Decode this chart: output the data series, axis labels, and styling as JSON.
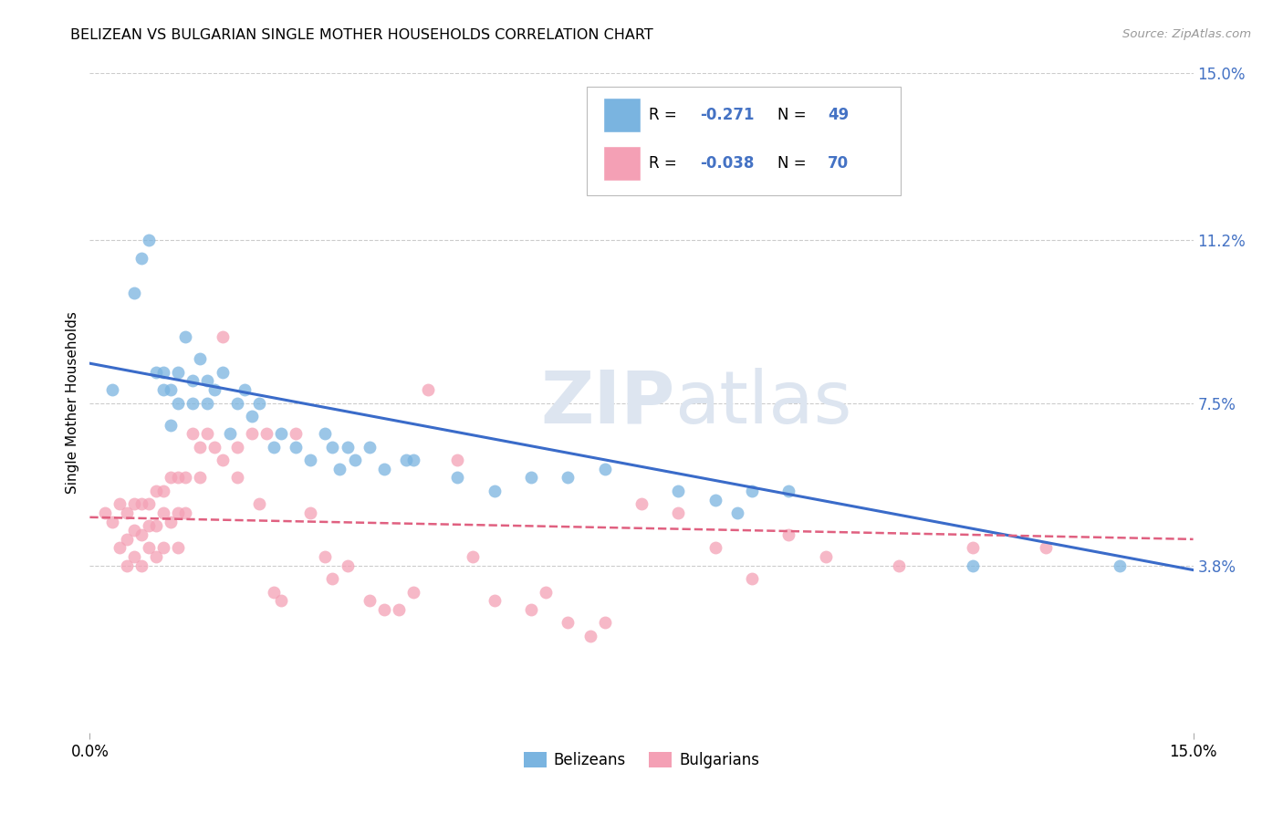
{
  "title": "BELIZEAN VS BULGARIAN SINGLE MOTHER HOUSEHOLDS CORRELATION CHART",
  "source": "Source: ZipAtlas.com",
  "ylabel": "Single Mother Households",
  "x_min": 0.0,
  "x_max": 0.15,
  "y_min": 0.0,
  "y_max": 0.15,
  "x_tick_labels": [
    "0.0%",
    "15.0%"
  ],
  "x_tick_vals": [
    0.0,
    0.15
  ],
  "y_tick_labels_right": [
    "3.8%",
    "7.5%",
    "11.2%",
    "15.0%"
  ],
  "y_tick_values_right": [
    0.038,
    0.075,
    0.112,
    0.15
  ],
  "belizean_color": "#7ab4e0",
  "bulgarian_color": "#f4a0b5",
  "trendline_blue": "#3a6bc9",
  "trendline_pink": "#e06080",
  "right_label_color": "#4472c4",
  "watermark_color": "#dde5f0",
  "belizean_x": [
    0.003,
    0.006,
    0.007,
    0.008,
    0.009,
    0.01,
    0.01,
    0.011,
    0.011,
    0.012,
    0.012,
    0.013,
    0.014,
    0.014,
    0.015,
    0.016,
    0.016,
    0.017,
    0.018,
    0.019,
    0.02,
    0.021,
    0.022,
    0.023,
    0.025,
    0.026,
    0.028,
    0.03,
    0.032,
    0.033,
    0.034,
    0.035,
    0.036,
    0.038,
    0.04,
    0.043,
    0.044,
    0.05,
    0.055,
    0.06,
    0.065,
    0.07,
    0.08,
    0.085,
    0.088,
    0.09,
    0.095,
    0.12,
    0.14
  ],
  "belizean_y": [
    0.078,
    0.1,
    0.108,
    0.112,
    0.082,
    0.078,
    0.082,
    0.078,
    0.07,
    0.082,
    0.075,
    0.09,
    0.075,
    0.08,
    0.085,
    0.08,
    0.075,
    0.078,
    0.082,
    0.068,
    0.075,
    0.078,
    0.072,
    0.075,
    0.065,
    0.068,
    0.065,
    0.062,
    0.068,
    0.065,
    0.06,
    0.065,
    0.062,
    0.065,
    0.06,
    0.062,
    0.062,
    0.058,
    0.055,
    0.058,
    0.058,
    0.06,
    0.055,
    0.053,
    0.05,
    0.055,
    0.055,
    0.038,
    0.038
  ],
  "bulgarian_x": [
    0.002,
    0.003,
    0.004,
    0.004,
    0.005,
    0.005,
    0.005,
    0.006,
    0.006,
    0.006,
    0.007,
    0.007,
    0.007,
    0.008,
    0.008,
    0.008,
    0.009,
    0.009,
    0.009,
    0.01,
    0.01,
    0.01,
    0.011,
    0.011,
    0.012,
    0.012,
    0.012,
    0.013,
    0.013,
    0.014,
    0.015,
    0.015,
    0.016,
    0.017,
    0.018,
    0.018,
    0.02,
    0.02,
    0.022,
    0.023,
    0.024,
    0.025,
    0.026,
    0.028,
    0.03,
    0.032,
    0.033,
    0.035,
    0.038,
    0.04,
    0.042,
    0.044,
    0.046,
    0.05,
    0.052,
    0.055,
    0.06,
    0.062,
    0.065,
    0.068,
    0.07,
    0.075,
    0.08,
    0.085,
    0.09,
    0.095,
    0.1,
    0.11,
    0.12,
    0.13
  ],
  "bulgarian_y": [
    0.05,
    0.048,
    0.052,
    0.042,
    0.05,
    0.044,
    0.038,
    0.052,
    0.046,
    0.04,
    0.052,
    0.045,
    0.038,
    0.052,
    0.047,
    0.042,
    0.055,
    0.047,
    0.04,
    0.055,
    0.05,
    0.042,
    0.058,
    0.048,
    0.058,
    0.05,
    0.042,
    0.058,
    0.05,
    0.068,
    0.065,
    0.058,
    0.068,
    0.065,
    0.062,
    0.09,
    0.065,
    0.058,
    0.068,
    0.052,
    0.068,
    0.032,
    0.03,
    0.068,
    0.05,
    0.04,
    0.035,
    0.038,
    0.03,
    0.028,
    0.028,
    0.032,
    0.078,
    0.062,
    0.04,
    0.03,
    0.028,
    0.032,
    0.025,
    0.022,
    0.025,
    0.052,
    0.05,
    0.042,
    0.035,
    0.045,
    0.04,
    0.038,
    0.042,
    0.042
  ],
  "trendline_blue_start_y": 0.084,
  "trendline_blue_end_y": 0.037,
  "trendline_pink_start_y": 0.049,
  "trendline_pink_end_y": 0.044
}
